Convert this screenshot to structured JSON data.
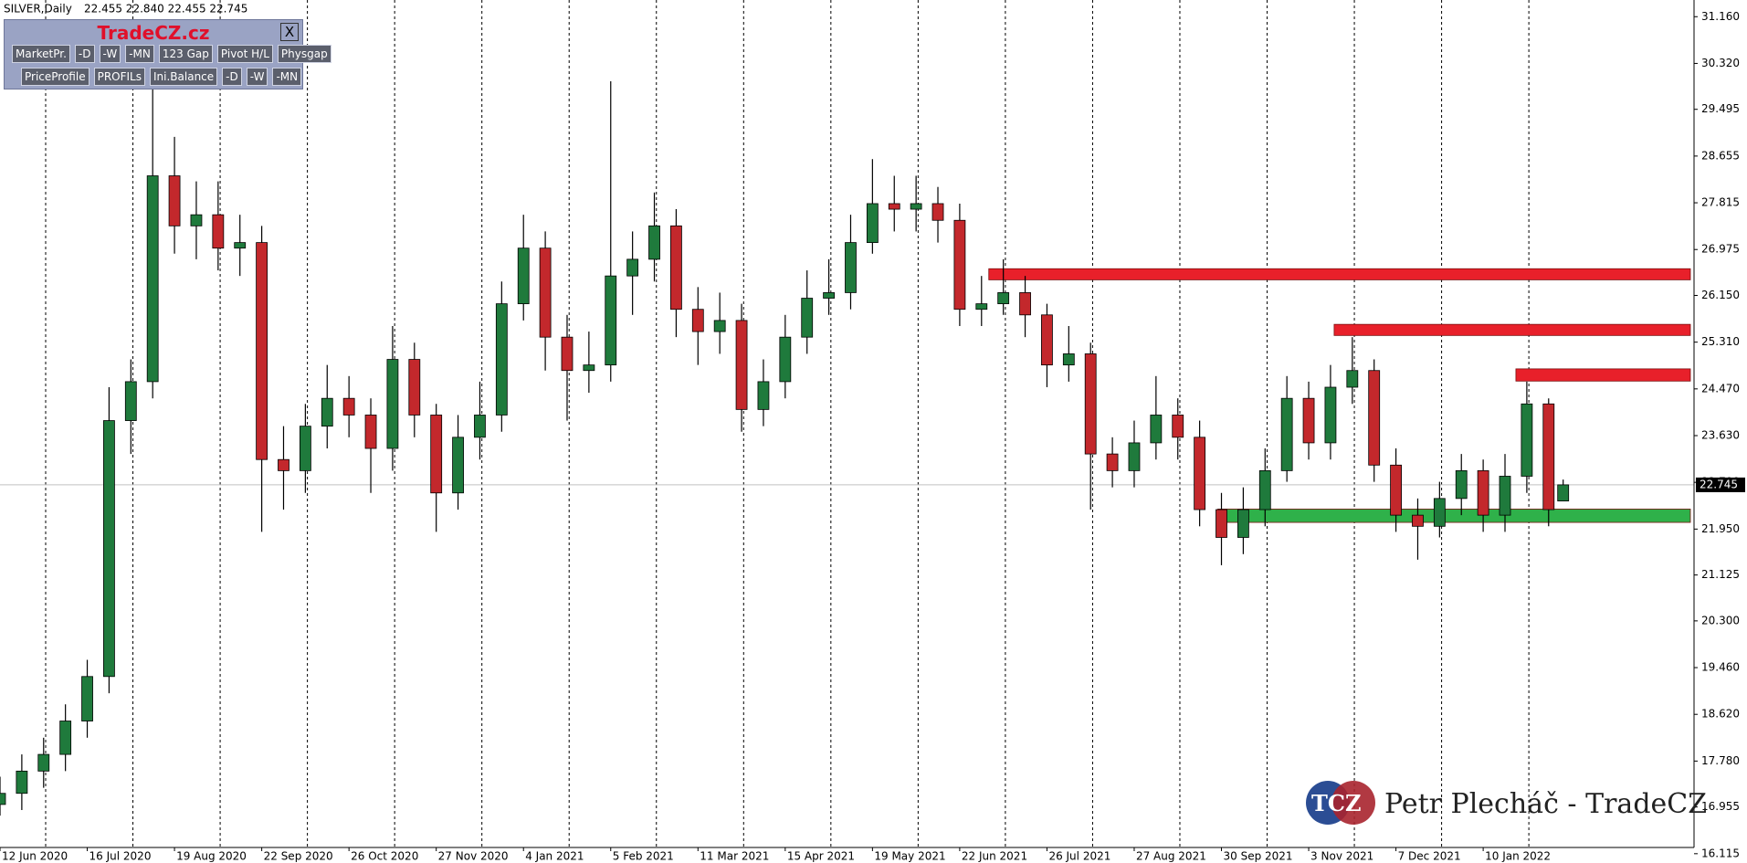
{
  "chart_data": {
    "type": "candlestick",
    "title": "SILVER,Daily",
    "subtitle": "22.455 22.840 22.455 22.745",
    "x": [
      0,
      6,
      12,
      18,
      24,
      30,
      36,
      42,
      48,
      54,
      60,
      66,
      72,
      78,
      84,
      90,
      96,
      102,
      108,
      114,
      120,
      126,
      132,
      138,
      144,
      150,
      156,
      162,
      168,
      174,
      180,
      186,
      192,
      198,
      204,
      210,
      216,
      222,
      228,
      234,
      240,
      246,
      252,
      258,
      264,
      270,
      276,
      282,
      288,
      294,
      300,
      306,
      312,
      318,
      324,
      330,
      336,
      342,
      348,
      354,
      360,
      366,
      372,
      378,
      384,
      390,
      396,
      402,
      408,
      414,
      420,
      426,
      430
    ],
    "open": [
      17.0,
      17.2,
      17.6,
      17.9,
      18.5,
      19.3,
      23.9,
      24.6,
      28.3,
      27.4,
      27.6,
      27.0,
      27.1,
      23.2,
      23.0,
      23.8,
      24.3,
      24.0,
      23.4,
      25.0,
      24.0,
      22.6,
      23.6,
      24.0,
      26.0,
      27.0,
      25.4,
      24.8,
      24.9,
      26.5,
      26.8,
      27.4,
      25.9,
      25.5,
      25.7,
      24.1,
      24.6,
      25.4,
      26.1,
      26.2,
      27.1,
      27.8,
      27.7,
      27.8,
      27.5,
      25.9,
      26.0,
      26.2,
      25.8,
      24.9,
      25.1,
      23.3,
      23.0,
      23.5,
      24.0,
      23.6,
      22.3,
      21.8,
      22.3,
      23.0,
      24.3,
      23.5,
      24.5,
      24.8,
      23.1,
      22.2,
      22.0,
      22.5,
      23.0,
      22.2,
      22.9,
      24.2,
      22.455
    ],
    "high": [
      17.5,
      17.9,
      18.2,
      18.8,
      19.6,
      24.5,
      25.0,
      30.0,
      29.0,
      28.2,
      28.2,
      27.6,
      27.4,
      23.8,
      24.2,
      24.9,
      24.7,
      24.3,
      25.6,
      25.3,
      24.2,
      24.0,
      24.6,
      26.4,
      27.6,
      27.3,
      25.8,
      25.5,
      30.0,
      27.3,
      28.0,
      27.7,
      26.3,
      26.2,
      26.0,
      25.0,
      25.8,
      26.6,
      26.8,
      27.6,
      28.6,
      28.3,
      28.3,
      28.1,
      27.8,
      26.5,
      26.8,
      26.5,
      26.0,
      25.6,
      25.3,
      23.6,
      23.9,
      24.7,
      24.3,
      23.9,
      22.6,
      22.7,
      23.4,
      24.7,
      24.6,
      24.9,
      25.4,
      25.0,
      23.4,
      22.5,
      22.8,
      23.3,
      23.2,
      23.3,
      24.6,
      24.3,
      22.84
    ],
    "low": [
      16.8,
      16.9,
      17.3,
      17.6,
      18.2,
      19.0,
      23.3,
      24.3,
      26.9,
      26.8,
      26.6,
      26.5,
      21.9,
      22.3,
      22.6,
      23.4,
      23.6,
      22.6,
      23.0,
      23.6,
      21.9,
      22.3,
      23.2,
      23.7,
      25.7,
      24.8,
      23.9,
      24.4,
      24.6,
      25.8,
      26.4,
      25.4,
      24.9,
      25.1,
      23.7,
      23.8,
      24.3,
      25.1,
      25.8,
      25.9,
      26.9,
      27.3,
      27.3,
      27.1,
      25.6,
      25.6,
      25.8,
      25.4,
      24.5,
      24.6,
      22.3,
      22.7,
      22.7,
      23.2,
      23.2,
      22.0,
      21.3,
      21.5,
      22.0,
      22.8,
      23.2,
      23.2,
      24.2,
      22.8,
      21.9,
      21.4,
      21.8,
      22.2,
      21.9,
      21.9,
      22.6,
      22.0,
      22.455
    ],
    "close": [
      17.2,
      17.6,
      17.9,
      18.5,
      19.3,
      23.9,
      24.6,
      28.3,
      27.4,
      27.6,
      27.0,
      27.1,
      23.2,
      23.0,
      23.8,
      24.3,
      24.0,
      23.4,
      25.0,
      24.0,
      22.6,
      23.6,
      24.0,
      26.0,
      27.0,
      25.4,
      24.8,
      24.9,
      26.5,
      26.8,
      27.4,
      25.9,
      25.5,
      25.7,
      24.1,
      24.6,
      25.4,
      26.1,
      26.2,
      27.1,
      27.8,
      27.7,
      27.8,
      27.5,
      25.9,
      26.0,
      26.2,
      25.8,
      24.9,
      25.1,
      23.3,
      23.0,
      23.5,
      24.0,
      23.6,
      22.3,
      21.8,
      22.3,
      23.0,
      24.3,
      23.5,
      24.5,
      24.8,
      23.1,
      22.2,
      22.0,
      22.5,
      23.0,
      22.2,
      22.9,
      24.2,
      22.3,
      22.745
    ],
    "up_color": "#1f7a3c",
    "down_color": "#c3282c",
    "zones": [
      {
        "x": 272,
        "y": [
          26.43,
          26.63
        ],
        "color": "#e8202a"
      },
      {
        "x": 367,
        "y": [
          25.43,
          25.63
        ],
        "color": "#e8202a"
      },
      {
        "x": 417,
        "y": [
          24.61,
          24.83
        ],
        "color": "#e8202a"
      },
      {
        "x": 335,
        "y": [
          22.07,
          22.31
        ],
        "color": "#2fb14a"
      }
    ],
    "xlim": [
      0,
      466
    ],
    "ylim": [
      16.03,
      31.46
    ],
    "xticks": [
      {
        "value": 0,
        "label": "12 Jun 2020"
      },
      {
        "value": 24,
        "label": "16 Jul 2020"
      },
      {
        "value": 48,
        "label": "19 Aug 2020"
      },
      {
        "value": 72,
        "label": "22 Sep 2020"
      },
      {
        "value": 96,
        "label": "26 Oct 2020"
      },
      {
        "value": 120,
        "label": "27 Nov 2020"
      },
      {
        "value": 144,
        "label": "4 Jan 2021"
      },
      {
        "value": 168,
        "label": "5 Feb 2021"
      },
      {
        "value": 192,
        "label": "11 Mar 2021"
      },
      {
        "value": 216,
        "label": "15 Apr 2021"
      },
      {
        "value": 240,
        "label": "19 May 2021"
      },
      {
        "value": 264,
        "label": "22 Jun 2021"
      },
      {
        "value": 288,
        "label": "26 Jul 2021"
      },
      {
        "value": 312,
        "label": "27 Aug 2021"
      },
      {
        "value": 336,
        "label": "30 Sep 2021"
      },
      {
        "value": 360,
        "label": "3 Nov 2021"
      },
      {
        "value": 384,
        "label": "7 Dec 2021"
      },
      {
        "value": 408,
        "label": "10 Jan 2022"
      }
    ],
    "yticks": [
      {
        "value": 31.16,
        "label": "31.160"
      },
      {
        "value": 30.32,
        "label": "30.320"
      },
      29.495,
      {
        "value": 28.655,
        "label": "28.655"
      },
      27.815,
      {
        "value": 26.975,
        "label": "26.975"
      },
      {
        "value": 26.15,
        "label": "26.150"
      },
      {
        "value": 25.31,
        "label": "25.310"
      },
      {
        "value": 24.47,
        "label": "24.470"
      },
      {
        "value": 23.63,
        "label": "23.630"
      },
      {
        "value": 22.79,
        "label": "22.790"
      },
      {
        "value": 21.95,
        "label": "21.950"
      },
      21.125,
      {
        "value": 20.3,
        "label": "20.300"
      },
      {
        "value": 19.46,
        "label": "19.460"
      },
      {
        "value": 18.62,
        "label": "18.620"
      },
      {
        "value": 17.78,
        "label": "17.780"
      },
      16.955,
      16.115
    ]
  },
  "panel": {
    "title": "TradeCZ.cz",
    "close": "X",
    "row1": [
      "MarketPr.",
      "-D",
      "-W",
      "-MN",
      "123 Gap",
      "Pivot H/L",
      "Physgap"
    ],
    "row2": [
      "PriceProfile",
      "PROFILs",
      "Ini.Balance",
      "-D",
      "-W",
      "-MN"
    ]
  },
  "watermark": {
    "logo": "TCZ",
    "text": "Petr Plecháč - TradeCZ"
  }
}
